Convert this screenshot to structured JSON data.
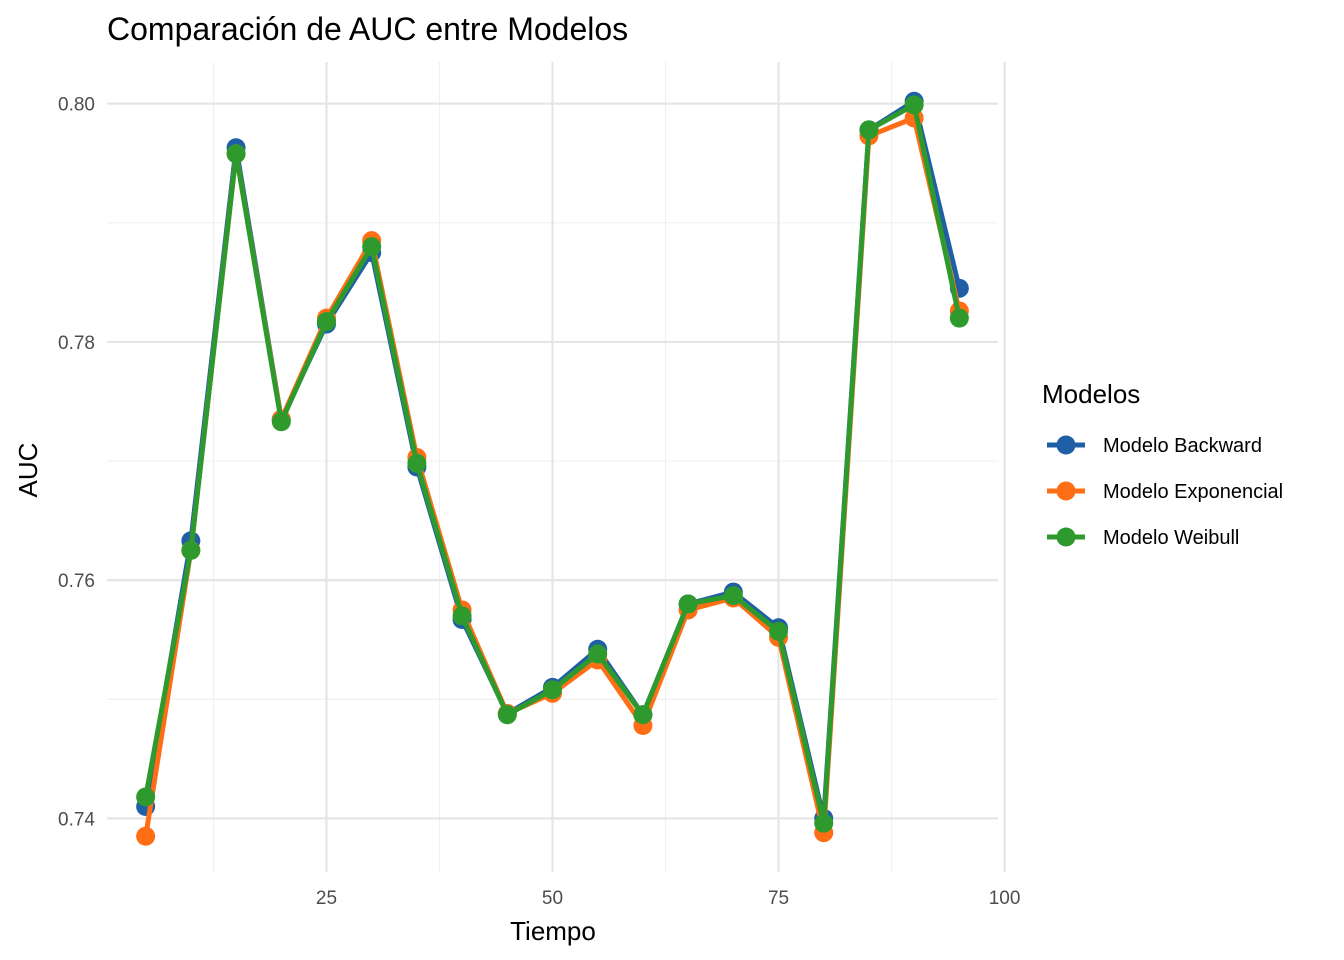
{
  "chart_data": {
    "type": "line",
    "title": "Comparación de AUC entre Modelos",
    "xlabel": "Tiempo",
    "ylabel": "AUC",
    "x": [
      5,
      10,
      15,
      20,
      25,
      30,
      35,
      40,
      45,
      50,
      55,
      60,
      65,
      70,
      75,
      80,
      85,
      90,
      95
    ],
    "xlim": [
      0,
      100
    ],
    "ylim": [
      0.7355,
      0.8035
    ],
    "x_ticks": [
      25,
      50,
      75,
      100
    ],
    "y_ticks": [
      0.74,
      0.76,
      0.78,
      0.8
    ],
    "x_tick_labels": [
      "25",
      "50",
      "75",
      "100"
    ],
    "y_tick_labels": [
      "0.74",
      "0.76",
      "0.78",
      "0.80"
    ],
    "grid": true,
    "legend": {
      "title": "Modelos",
      "position": "right"
    },
    "series": [
      {
        "name": "Modelo Backward",
        "color": "#1F5FA6",
        "values": [
          0.741,
          0.7633,
          0.7963,
          0.7735,
          0.7815,
          0.7875,
          0.7695,
          0.7567,
          0.7488,
          0.751,
          0.7542,
          0.7487,
          0.758,
          0.759,
          0.756,
          0.74,
          0.7978,
          0.8002,
          0.7845
        ]
      },
      {
        "name": "Modelo Exponencial",
        "color": "#FF6E14",
        "values": [
          0.7385,
          0.7625,
          0.7958,
          0.7735,
          0.782,
          0.7885,
          0.7703,
          0.7575,
          0.7488,
          0.7505,
          0.7533,
          0.7478,
          0.7575,
          0.7585,
          0.7552,
          0.7388,
          0.7973,
          0.7988,
          0.7826
        ]
      },
      {
        "name": "Modelo Weibull",
        "color": "#2E9A2E",
        "values": [
          0.7418,
          0.7625,
          0.7958,
          0.7733,
          0.7817,
          0.788,
          0.7698,
          0.757,
          0.7487,
          0.7508,
          0.7538,
          0.7487,
          0.758,
          0.7587,
          0.7557,
          0.7396,
          0.7978,
          0.7999,
          0.782
        ]
      }
    ]
  }
}
